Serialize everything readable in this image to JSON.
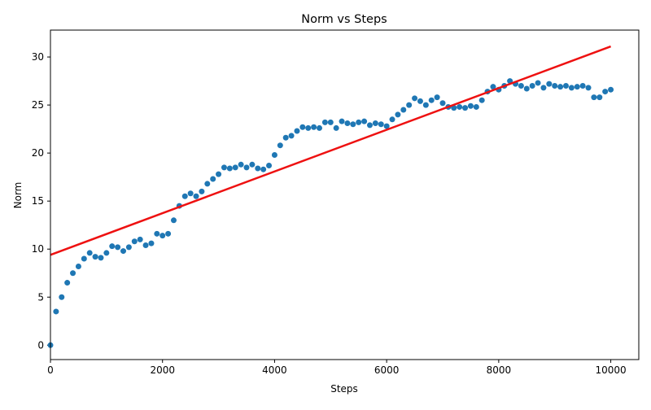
{
  "chart_data": {
    "type": "scatter",
    "title": "Norm vs Steps",
    "x_label": "Steps",
    "y_label": "Norm",
    "xlim": [
      0,
      10500
    ],
    "ylim": [
      -1.5,
      32.8
    ],
    "xticks": [
      0,
      2000,
      4000,
      6000,
      8000,
      10000
    ],
    "yticks": [
      0,
      5,
      10,
      15,
      20,
      25,
      30
    ],
    "series": [
      {
        "type": "scatter",
        "color": "#1f77b4",
        "x": [
          0,
          100,
          200,
          300,
          400,
          500,
          600,
          700,
          800,
          900,
          1000,
          1100,
          1200,
          1300,
          1400,
          1500,
          1600,
          1700,
          1800,
          1900,
          2000,
          2100,
          2200,
          2300,
          2400,
          2500,
          2600,
          2700,
          2800,
          2900,
          3000,
          3100,
          3200,
          3300,
          3400,
          3500,
          3600,
          3700,
          3800,
          3900,
          4000,
          4100,
          4200,
          4300,
          4400,
          4500,
          4600,
          4700,
          4800,
          4900,
          5000,
          5100,
          5200,
          5300,
          5400,
          5500,
          5600,
          5700,
          5800,
          5900,
          6000,
          6100,
          6200,
          6300,
          6400,
          6500,
          6600,
          6700,
          6800,
          6900,
          7000,
          7100,
          7200,
          7300,
          7400,
          7500,
          7600,
          7700,
          7800,
          7900,
          8000,
          8100,
          8200,
          8300,
          8400,
          8500,
          8600,
          8700,
          8800,
          8900,
          9000,
          9100,
          9200,
          9300,
          9400,
          9500,
          9600,
          9700,
          9800,
          9900,
          10000
        ],
        "values": [
          0,
          3.5,
          5,
          6.5,
          7.5,
          8.2,
          9.0,
          9.6,
          9.2,
          9.1,
          9.6,
          10.3,
          10.2,
          9.8,
          10.2,
          10.8,
          11.0,
          10.4,
          10.6,
          11.6,
          11.4,
          11.6,
          13.0,
          14.5,
          15.5,
          15.8,
          15.5,
          16.0,
          16.8,
          17.3,
          17.8,
          18.5,
          18.4,
          18.5,
          18.8,
          18.5,
          18.8,
          18.4,
          18.3,
          18.7,
          19.8,
          20.8,
          21.6,
          21.8,
          22.3,
          22.7,
          22.6,
          22.7,
          22.6,
          23.2,
          23.2,
          22.6,
          23.3,
          23.1,
          23.0,
          23.2,
          23.3,
          22.9,
          23.1,
          23.0,
          22.8,
          23.5,
          24.0,
          24.5,
          25.0,
          25.7,
          25.4,
          25.0,
          25.5,
          25.8,
          25.2,
          24.8,
          24.7,
          24.8,
          24.7,
          24.9,
          24.8,
          25.5,
          26.4,
          26.9,
          26.6,
          27.0,
          27.5,
          27.2,
          27.0,
          26.7,
          27.0,
          27.3,
          26.8,
          27.2,
          27.0,
          26.9,
          27.0,
          26.8,
          26.9,
          27.0,
          26.8,
          25.8,
          25.8,
          26.4,
          26.6
        ]
      },
      {
        "type": "line",
        "color": "#ee1111",
        "x": [
          0,
          10000
        ],
        "values": [
          9.4,
          31.1
        ]
      }
    ]
  }
}
